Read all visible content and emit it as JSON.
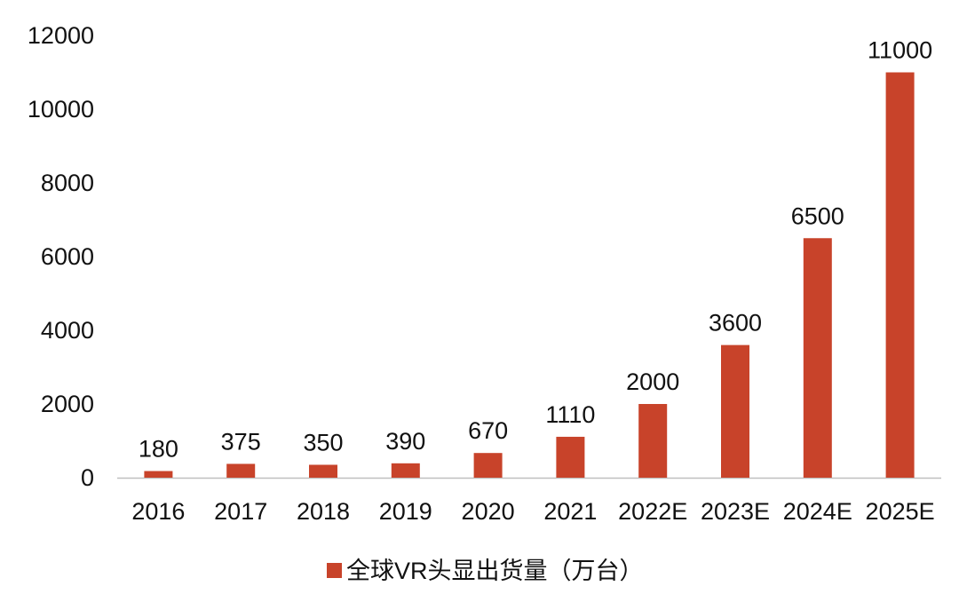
{
  "chart_data": {
    "type": "bar",
    "categories": [
      "2016",
      "2017",
      "2018",
      "2019",
      "2020",
      "2021",
      "2022E",
      "2023E",
      "2024E",
      "2025E"
    ],
    "series": [
      {
        "name": "全球VR头显出货量（万台）",
        "values": [
          180,
          375,
          350,
          390,
          670,
          1110,
          2000,
          3600,
          6500,
          11000
        ],
        "color": "#C8432A"
      }
    ],
    "data_labels": [
      "180",
      "375",
      "350",
      "390",
      "670",
      "1110",
      "2000",
      "3600",
      "6500",
      "11000"
    ],
    "y_ticks": [
      0,
      2000,
      4000,
      6000,
      8000,
      10000,
      12000
    ],
    "ylim": [
      0,
      12000
    ],
    "grid": false,
    "legend_position": "bottom-center",
    "title": "",
    "xlabel": "",
    "ylabel": ""
  }
}
